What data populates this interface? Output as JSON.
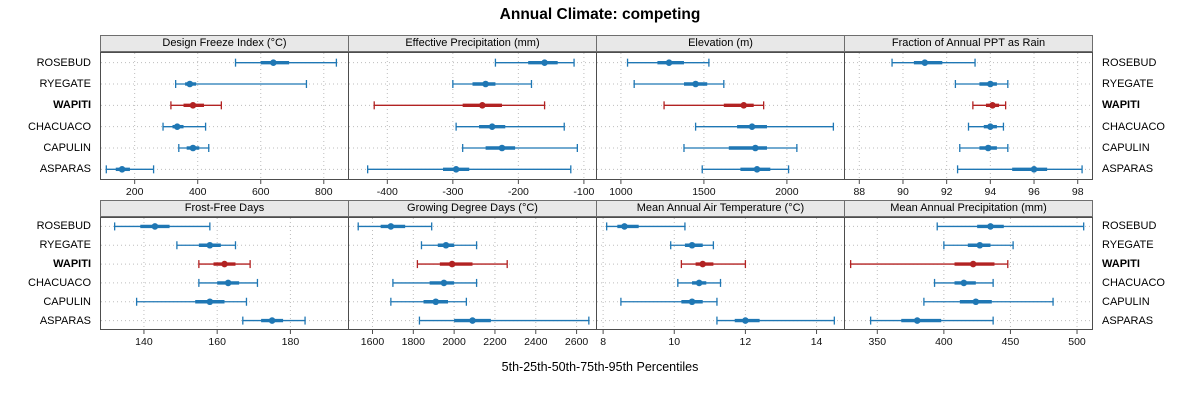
{
  "title": "Annual Climate: competing",
  "caption": "5th-25th-50th-75th-95th Percentiles",
  "percentiles": [
    "5th",
    "25th",
    "50th",
    "75th",
    "95th"
  ],
  "sites": [
    "ROSEBUD",
    "RYEGATE",
    "WAPITI",
    "CHACUACO",
    "CAPULIN",
    "ASPARAS"
  ],
  "highlight_site": "WAPITI",
  "colors": {
    "series": "#1f77b4",
    "highlight": "#b22222",
    "strip_bg": "#e8e8e8",
    "strip_border": "#6e6e6e",
    "panel_border": "#4d4d4d",
    "grid": "#bdbdbd"
  },
  "chart_data": [
    {
      "type": "dotplot-percentiles",
      "panel": "Design Freeze Index (°C)",
      "row": 1,
      "xlim": [
        90,
        880
      ],
      "ticks": [
        200,
        400,
        600,
        800
      ],
      "series": {
        "ROSEBUD": [
          520,
          600,
          640,
          690,
          840
        ],
        "RYEGATE": [
          330,
          360,
          375,
          395,
          745
        ],
        "WAPITI": [
          315,
          355,
          385,
          420,
          475
        ],
        "CHACUACO": [
          290,
          320,
          335,
          355,
          425
        ],
        "CAPULIN": [
          340,
          365,
          385,
          405,
          435
        ],
        "ASPARAS": [
          110,
          140,
          160,
          185,
          260
        ]
      }
    },
    {
      "type": "dotplot-percentiles",
      "panel": "Effective Precipitation (mm)",
      "row": 1,
      "xlim": [
        -460,
        -80
      ],
      "ticks": [
        -400,
        -300,
        -200,
        -100
      ],
      "series": {
        "ROSEBUD": [
          -235,
          -185,
          -160,
          -140,
          -115
        ],
        "RYEGATE": [
          -300,
          -270,
          -250,
          -235,
          -180
        ],
        "WAPITI": [
          -420,
          -285,
          -255,
          -225,
          -160
        ],
        "CHACUACO": [
          -295,
          -260,
          -240,
          -220,
          -130
        ],
        "CAPULIN": [
          -285,
          -250,
          -225,
          -205,
          -110
        ],
        "ASPARAS": [
          -430,
          -315,
          -295,
          -275,
          -120
        ]
      }
    },
    {
      "type": "dotplot-percentiles",
      "panel": "Elevation (m)",
      "row": 1,
      "xlim": [
        850,
        2350
      ],
      "ticks": [
        1000,
        1500,
        2000
      ],
      "series": {
        "ROSEBUD": [
          1040,
          1220,
          1290,
          1380,
          1530
        ],
        "RYEGATE": [
          1080,
          1380,
          1450,
          1520,
          1620
        ],
        "WAPITI": [
          1260,
          1620,
          1740,
          1800,
          1860
        ],
        "CHACUACO": [
          1450,
          1700,
          1790,
          1880,
          2280
        ],
        "CAPULIN": [
          1380,
          1650,
          1810,
          1880,
          2060
        ],
        "ASPARAS": [
          1490,
          1720,
          1820,
          1900,
          2010
        ]
      }
    },
    {
      "type": "dotplot-percentiles",
      "panel": "Fraction of Annual PPT as Rain",
      "row": 1,
      "xlim": [
        87.3,
        98.7
      ],
      "ticks": [
        88,
        90,
        92,
        94,
        96,
        98
      ],
      "series": {
        "ROSEBUD": [
          89.5,
          90.5,
          91.0,
          91.8,
          93.3
        ],
        "RYEGATE": [
          92.4,
          93.5,
          94.0,
          94.3,
          94.8
        ],
        "WAPITI": [
          93.2,
          93.8,
          94.1,
          94.4,
          94.7
        ],
        "CHACUACO": [
          93.0,
          93.7,
          94.0,
          94.3,
          94.6
        ],
        "CAPULIN": [
          92.6,
          93.5,
          93.9,
          94.3,
          94.8
        ],
        "ASPARAS": [
          92.5,
          95.0,
          96.0,
          96.6,
          98.2
        ]
      }
    },
    {
      "type": "dotplot-percentiles",
      "panel": "Frost-Free Days",
      "row": 2,
      "xlim": [
        128,
        196
      ],
      "ticks": [
        140,
        160,
        180
      ],
      "series": {
        "ROSEBUD": [
          132,
          139,
          143,
          147,
          158
        ],
        "RYEGATE": [
          149,
          155,
          158,
          161,
          165
        ],
        "WAPITI": [
          155,
          159,
          162,
          165,
          169
        ],
        "CHACUACO": [
          155,
          160,
          163,
          166,
          171
        ],
        "CAPULIN": [
          138,
          154,
          158,
          162,
          168
        ],
        "ASPARAS": [
          167,
          172,
          175,
          178,
          184
        ]
      }
    },
    {
      "type": "dotplot-percentiles",
      "panel": "Growing Degree Days (°C)",
      "row": 2,
      "xlim": [
        1480,
        2700
      ],
      "ticks": [
        1600,
        1800,
        2000,
        2200,
        2400,
        2600
      ],
      "series": {
        "ROSEBUD": [
          1530,
          1640,
          1690,
          1760,
          1890
        ],
        "RYEGATE": [
          1840,
          1920,
          1960,
          2000,
          2110
        ],
        "WAPITI": [
          1820,
          1930,
          1990,
          2090,
          2260
        ],
        "CHACUACO": [
          1700,
          1880,
          1950,
          2000,
          2110
        ],
        "CAPULIN": [
          1690,
          1850,
          1910,
          1970,
          2060
        ],
        "ASPARAS": [
          1830,
          2000,
          2090,
          2180,
          2660
        ]
      }
    },
    {
      "type": "dotplot-percentiles",
      "panel": "Mean Annual Air Temperature (°C)",
      "row": 2,
      "xlim": [
        7.8,
        14.8
      ],
      "ticks": [
        8,
        10,
        12,
        14
      ],
      "series": {
        "ROSEBUD": [
          8.1,
          8.4,
          8.6,
          9.0,
          10.3
        ],
        "RYEGATE": [
          9.9,
          10.3,
          10.5,
          10.8,
          11.1
        ],
        "WAPITI": [
          10.2,
          10.6,
          10.8,
          11.1,
          12.0
        ],
        "CHACUACO": [
          10.1,
          10.5,
          10.7,
          10.9,
          11.3
        ],
        "CAPULIN": [
          8.5,
          10.2,
          10.5,
          10.8,
          11.2
        ],
        "ASPARAS": [
          11.2,
          11.7,
          12.0,
          12.4,
          14.5
        ]
      }
    },
    {
      "type": "dotplot-percentiles",
      "panel": "Mean Annual Precipitation (mm)",
      "row": 2,
      "xlim": [
        325,
        512
      ],
      "ticks": [
        350,
        400,
        450,
        500
      ],
      "series": {
        "ROSEBUD": [
          395,
          425,
          435,
          445,
          505
        ],
        "RYEGATE": [
          400,
          418,
          427,
          435,
          452
        ],
        "WAPITI": [
          330,
          408,
          422,
          438,
          448
        ],
        "CHACUACO": [
          393,
          408,
          415,
          424,
          437
        ],
        "CAPULIN": [
          385,
          412,
          424,
          436,
          482
        ],
        "ASPARAS": [
          345,
          368,
          380,
          398,
          437
        ]
      }
    }
  ]
}
